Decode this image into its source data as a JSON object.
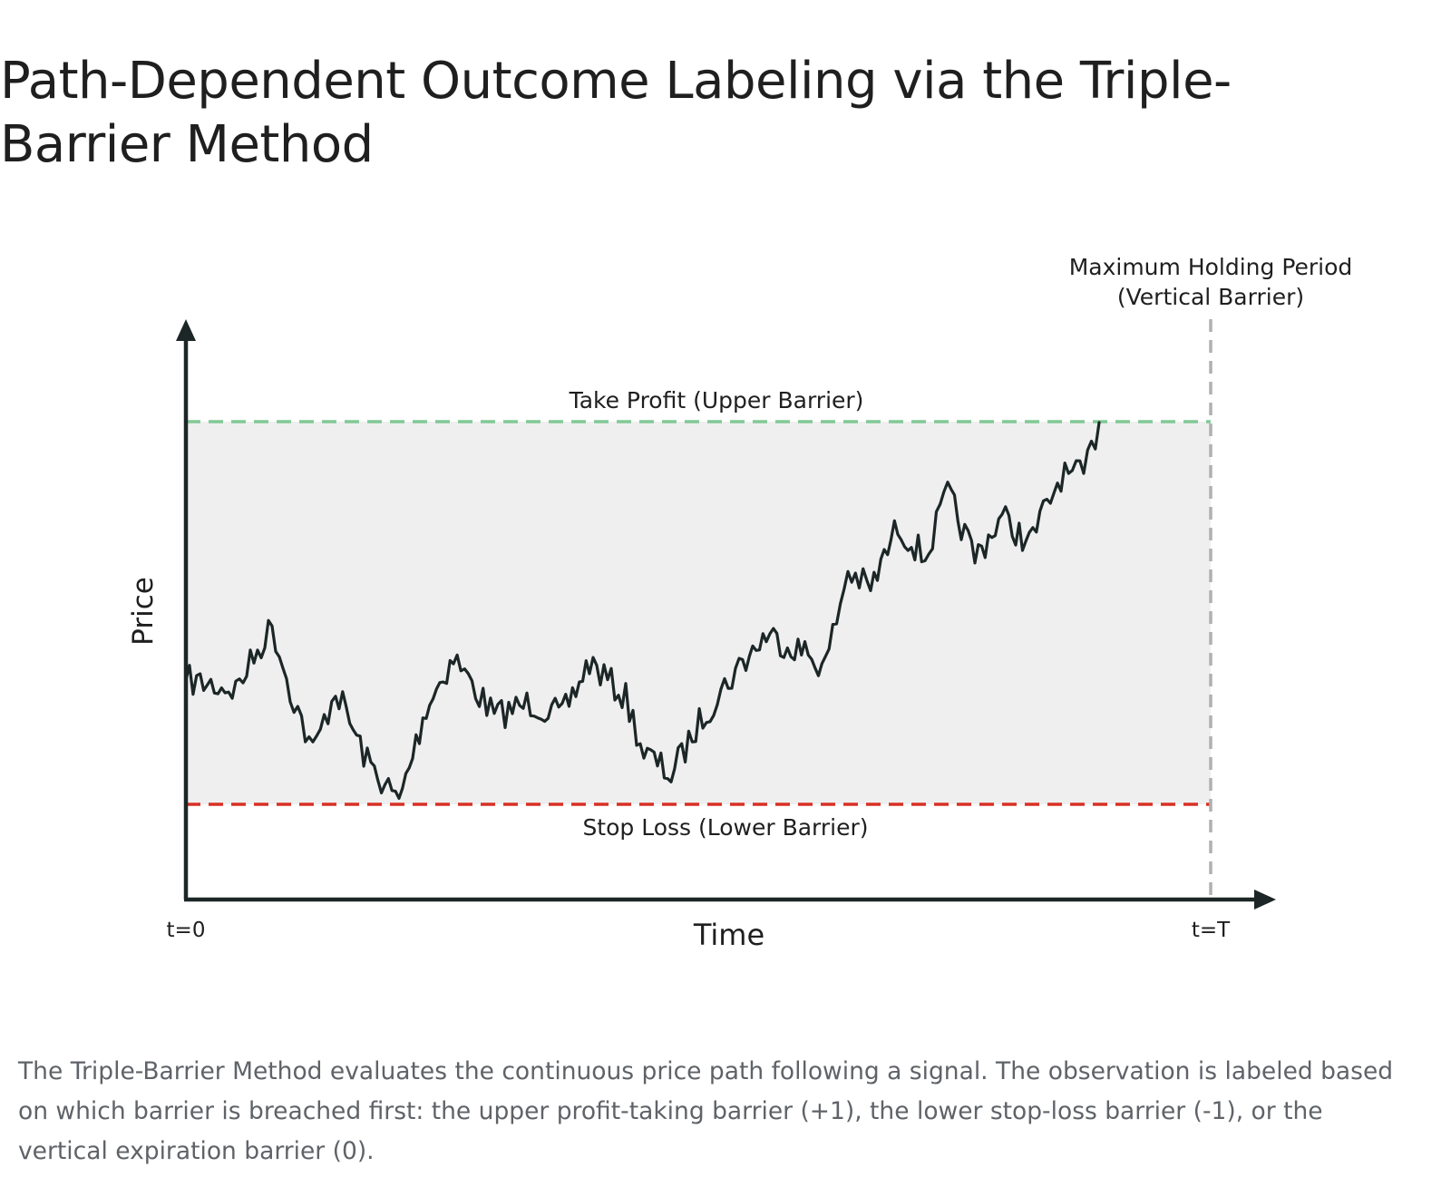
{
  "title": "Path-Dependent Outcome Labeling via the Triple-Barrier Method",
  "diagram": {
    "y_axis_label": "Price",
    "x_axis_label": "Time",
    "x_start_label": "t=0",
    "x_end_label": "t=T",
    "upper_barrier_label": "Take Profit (Upper Barrier)",
    "lower_barrier_label": "Stop Loss (Lower Barrier)",
    "vertical_barrier_label_line1": "Maximum Holding Period",
    "vertical_barrier_label_line2": "(Vertical Barrier)",
    "colors": {
      "upper_barrier": "#81c995",
      "lower_barrier": "#d93025",
      "vertical_barrier": "#b0b0b0",
      "band_fill": "#efefef",
      "axis": "#1c2626",
      "price_path": "#1c2626"
    }
  },
  "caption": "The Triple-Barrier Method evaluates the continuous price path following a signal. The observation is labeled based on which barrier is breached first: the upper profit-taking barrier (+1), the lower stop-loss barrier (-1), or the vertical expiration barrier (0)."
}
